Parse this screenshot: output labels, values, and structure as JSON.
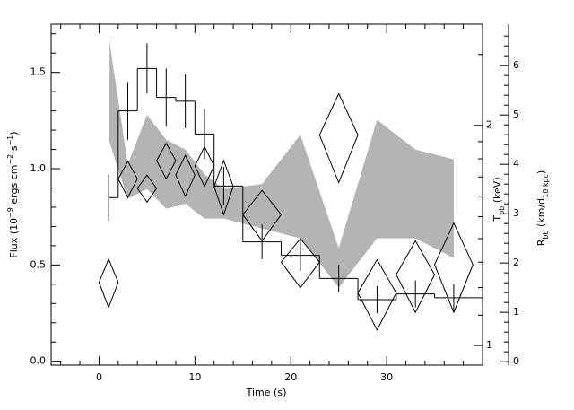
{
  "chart_data": {
    "type": "multi-axis",
    "xlabel": "Time (s)",
    "ylabel": [
      "Flux (10",
      "−9",
      " ergs cm",
      "−2",
      " s",
      "−1",
      ")"
    ],
    "y2label": [
      "T",
      "bb",
      " (keV)"
    ],
    "y3label": [
      "R",
      "bb",
      " (km/d",
      "10 kpc",
      ")"
    ],
    "xlim": [
      -5,
      40
    ],
    "xticks": [
      0,
      10,
      20,
      30
    ],
    "xminor": [
      -4,
      -2,
      2,
      4,
      6,
      8,
      12,
      14,
      16,
      18,
      22,
      24,
      26,
      28,
      32,
      34,
      36,
      38
    ],
    "ylim": [
      -0.02,
      1.75
    ],
    "yticks": [
      {
        "value": 0,
        "label": "0.0"
      },
      {
        "value": 0.5,
        "label": "0.5"
      },
      {
        "value": 1,
        "label": "1.0"
      },
      {
        "value": 1.5,
        "label": "1.5"
      }
    ],
    "yminor": [
      0.1,
      0.2,
      0.3,
      0.4,
      0.6,
      0.7,
      0.8,
      0.9,
      1.1,
      1.2,
      1.3,
      1.4,
      1.6,
      1.7
    ],
    "y2lim": [
      0.94,
      2.75
    ],
    "y2log": true,
    "y2ticks": [
      1,
      2
    ],
    "y2minor": [
      1.1,
      1.2,
      1.3,
      1.4,
      1.5,
      1.6,
      1.7,
      1.8,
      1.9,
      2.5
    ],
    "y3lim": [
      -0.07,
      6.84
    ],
    "y3ticks": [
      0,
      1,
      2,
      3,
      4,
      5,
      6
    ],
    "y3minor": [
      0.2,
      0.4,
      0.6,
      0.8,
      1.2,
      1.4,
      1.6,
      1.8,
      2.2,
      2.4,
      2.6,
      2.8,
      3.2,
      3.4,
      3.6,
      3.8,
      4.2,
      4.4,
      4.6,
      4.8,
      5.2,
      5.4,
      5.6,
      5.8,
      6.2,
      6.4,
      6.6
    ],
    "series": [
      {
        "name": "Flux",
        "axis": "y",
        "color": "#000000",
        "bins": [
          1,
          2,
          4,
          6,
          8,
          10,
          12,
          15,
          19,
          23,
          27,
          31,
          35,
          40
        ],
        "x": [
          1,
          3,
          5,
          7,
          9,
          11,
          13,
          17,
          21,
          25,
          29,
          33,
          37
        ],
        "values": [
          0.85,
          1.3,
          1.52,
          1.37,
          1.35,
          1.18,
          0.91,
          0.62,
          0.55,
          0.43,
          0.32,
          0.35,
          0.33
        ],
        "errors": [
          0.12,
          0.15,
          0.13,
          0.15,
          0.14,
          0.13,
          0.1,
          0.09,
          0.08,
          0.07,
          0.07,
          0.07,
          0.07
        ]
      },
      {
        "name": "Tbb",
        "axis": "y2",
        "color": "#000000",
        "x": [
          1,
          3,
          5,
          7,
          9,
          11,
          13,
          17,
          21,
          25,
          29,
          33,
          37
        ],
        "xerr": [
          1,
          1,
          1,
          1,
          1,
          1,
          1,
          2,
          2,
          2,
          2,
          2,
          2
        ],
        "values": [
          1.22,
          1.69,
          1.64,
          1.79,
          1.71,
          1.76,
          1.65,
          1.51,
          1.3,
          1.94,
          1.18,
          1.25,
          1.29
        ],
        "errors": [
          0.093,
          0.096,
          0.07,
          0.1,
          0.11,
          0.11,
          0.14,
          0.12,
          0.1,
          0.27,
          0.13,
          0.14,
          0.18
        ]
      },
      {
        "name": "Rbb",
        "axis": "y3",
        "color": "#b4b4b4",
        "x": [
          1,
          3,
          5,
          7,
          9,
          11,
          13,
          17,
          21,
          25,
          29,
          33,
          37
        ],
        "upper": [
          6.6,
          4.0,
          5.0,
          4.5,
          4.3,
          3.8,
          3.5,
          3.6,
          4.6,
          2.3,
          4.9,
          4.3,
          4.1
        ],
        "lower": [
          4.5,
          3.3,
          3.5,
          3.1,
          3.2,
          2.9,
          2.9,
          2.7,
          2.5,
          1.5,
          2.5,
          2.5,
          2.1
        ]
      }
    ]
  }
}
